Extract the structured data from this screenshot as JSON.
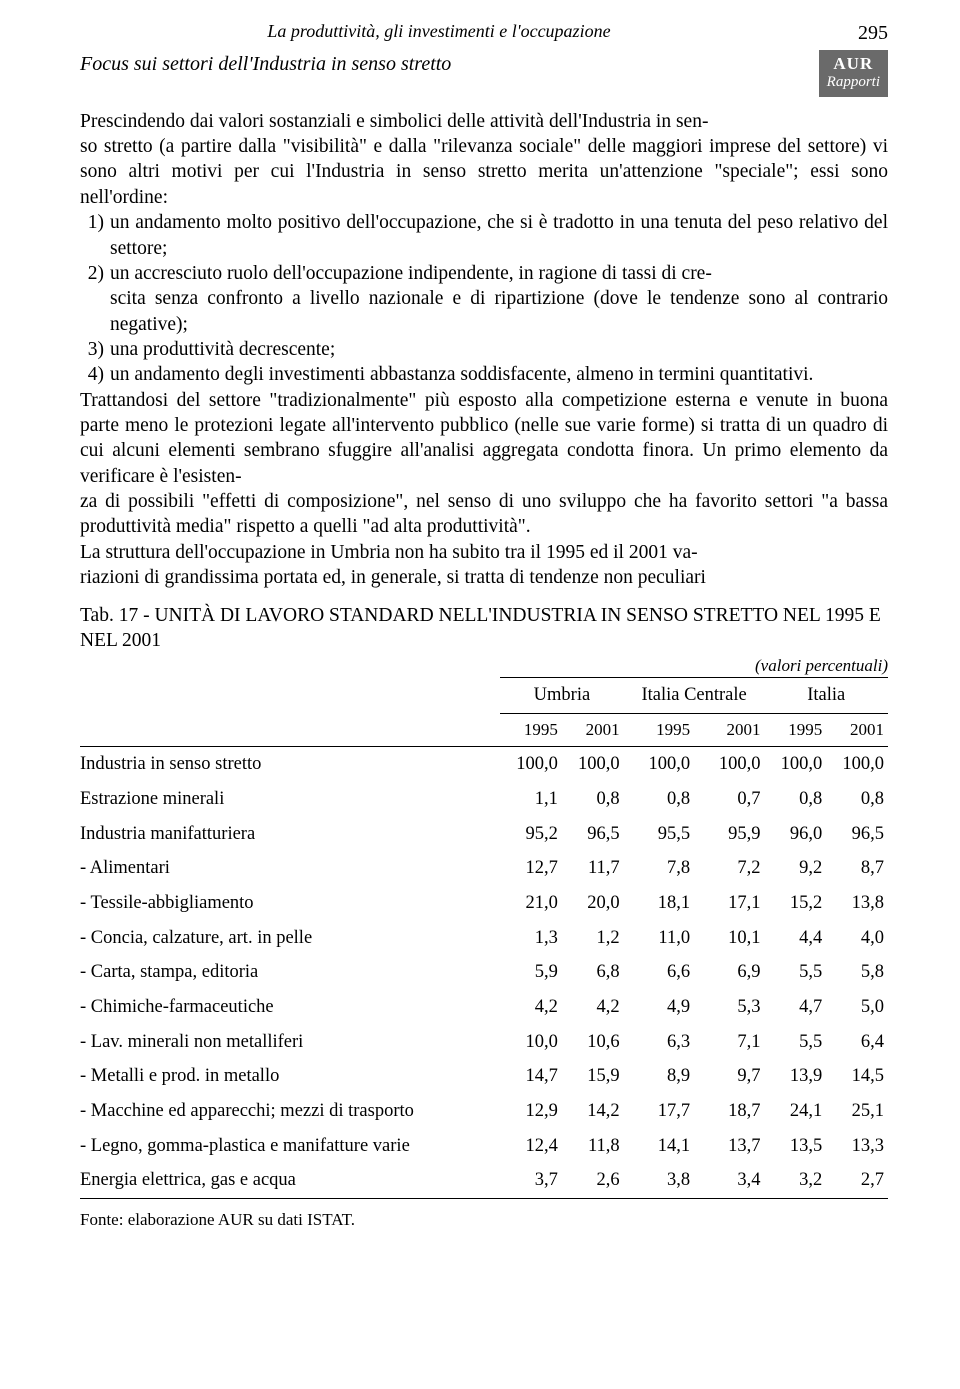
{
  "header": {
    "running_head": "La produttività, gli investimenti e l'occupazione",
    "page_number": "295",
    "badge_line1": "AUR",
    "badge_line2": "Rapporti",
    "section_title": "Focus sui settori dell'Industria in senso stretto"
  },
  "body": {
    "para1_a": "Prescindendo dai valori sostanziali e simbolici delle attività dell'Industria in sen-",
    "para1_b": "so stretto (a partire dalla \"visibilità\" e dalla \"rilevanza sociale\" delle maggiori imprese del settore) vi sono altri motivi per cui l'Industria in senso stretto merita un'attenzione \"speciale\"; essi sono nell'ordine:",
    "item1": "un andamento molto positivo dell'occupazione, che si è tradotto in una tenuta del peso relativo del settore;",
    "item2": "un accresciuto ruolo dell'occupazione indipendente, in ragione di tassi di cre-",
    "item2b": "scita senza confronto a livello nazionale e di ripartizione (dove le tendenze sono al contrario negative);",
    "item3": "una produttività decrescente;",
    "item4": "un andamento degli investimenti abbastanza soddisfacente, almeno in termini quantitativi.",
    "para2": "Trattandosi del settore \"tradizionalmente\" più esposto alla competizione esterna e venute in buona parte meno le protezioni legate all'intervento pubblico (nelle sue varie forme) si tratta di un quadro di cui alcuni elementi sembrano sfuggire all'analisi aggregata condotta finora. Un primo elemento da verificare è l'esisten-",
    "para2b": "za di possibili \"effetti di composizione\", nel senso di uno sviluppo che ha favorito settori \"a bassa produttività media\" rispetto a quelli \"ad alta produttività\".",
    "para3": "La struttura dell'occupazione in Umbria non ha subito tra il 1995 ed il 2001 va-",
    "para3b": "riazioni di grandissima portata ed, in generale, si tratta di tendenze non peculiari"
  },
  "table": {
    "title": "Tab. 17 - UNITÀ DI LAVORO STANDARD NELL'INDUSTRIA IN SENSO STRETTO NEL 1995 E NEL 2001",
    "note": "(valori percentuali)",
    "sup_headers": [
      "Umbria",
      "Italia Centrale",
      "Italia"
    ],
    "years": [
      "1995",
      "2001",
      "1995",
      "2001",
      "1995",
      "2001"
    ],
    "rows": [
      {
        "label": "Industria in senso stretto",
        "v": [
          "100,0",
          "100,0",
          "100,0",
          "100,0",
          "100,0",
          "100,0"
        ]
      },
      {
        "label": "Estrazione minerali",
        "v": [
          "1,1",
          "0,8",
          "0,8",
          "0,7",
          "0,8",
          "0,8"
        ]
      },
      {
        "label": "Industria manifatturiera",
        "v": [
          "95,2",
          "96,5",
          "95,5",
          "95,9",
          "96,0",
          "96,5"
        ]
      },
      {
        "label": "- Alimentari",
        "v": [
          "12,7",
          "11,7",
          "7,8",
          "7,2",
          "9,2",
          "8,7"
        ]
      },
      {
        "label": "- Tessile-abbigliamento",
        "v": [
          "21,0",
          "20,0",
          "18,1",
          "17,1",
          "15,2",
          "13,8"
        ]
      },
      {
        "label": "- Concia, calzature, art. in pelle",
        "v": [
          "1,3",
          "1,2",
          "11,0",
          "10,1",
          "4,4",
          "4,0"
        ]
      },
      {
        "label": "- Carta, stampa, editoria",
        "v": [
          "5,9",
          "6,8",
          "6,6",
          "6,9",
          "5,5",
          "5,8"
        ]
      },
      {
        "label": "- Chimiche-farmaceutiche",
        "v": [
          "4,2",
          "4,2",
          "4,9",
          "5,3",
          "4,7",
          "5,0"
        ]
      },
      {
        "label": "- Lav. minerali non metalliferi",
        "v": [
          "10,0",
          "10,6",
          "6,3",
          "7,1",
          "5,5",
          "6,4"
        ]
      },
      {
        "label": "- Metalli e prod. in metallo",
        "v": [
          "14,7",
          "15,9",
          "8,9",
          "9,7",
          "13,9",
          "14,5"
        ]
      },
      {
        "label": "- Macchine ed apparecchi; mezzi di trasporto",
        "v": [
          "12,9",
          "14,2",
          "17,7",
          "18,7",
          "24,1",
          "25,1"
        ]
      },
      {
        "label": "- Legno, gomma-plastica e manifatture varie",
        "v": [
          "12,4",
          "11,8",
          "14,1",
          "13,7",
          "13,5",
          "13,3"
        ]
      },
      {
        "label": "Energia elettrica, gas e acqua",
        "v": [
          "3,7",
          "2,6",
          "3,8",
          "3,4",
          "3,2",
          "2,7"
        ]
      }
    ],
    "source": "Fonte: elaborazione AUR su dati ISTAT."
  }
}
